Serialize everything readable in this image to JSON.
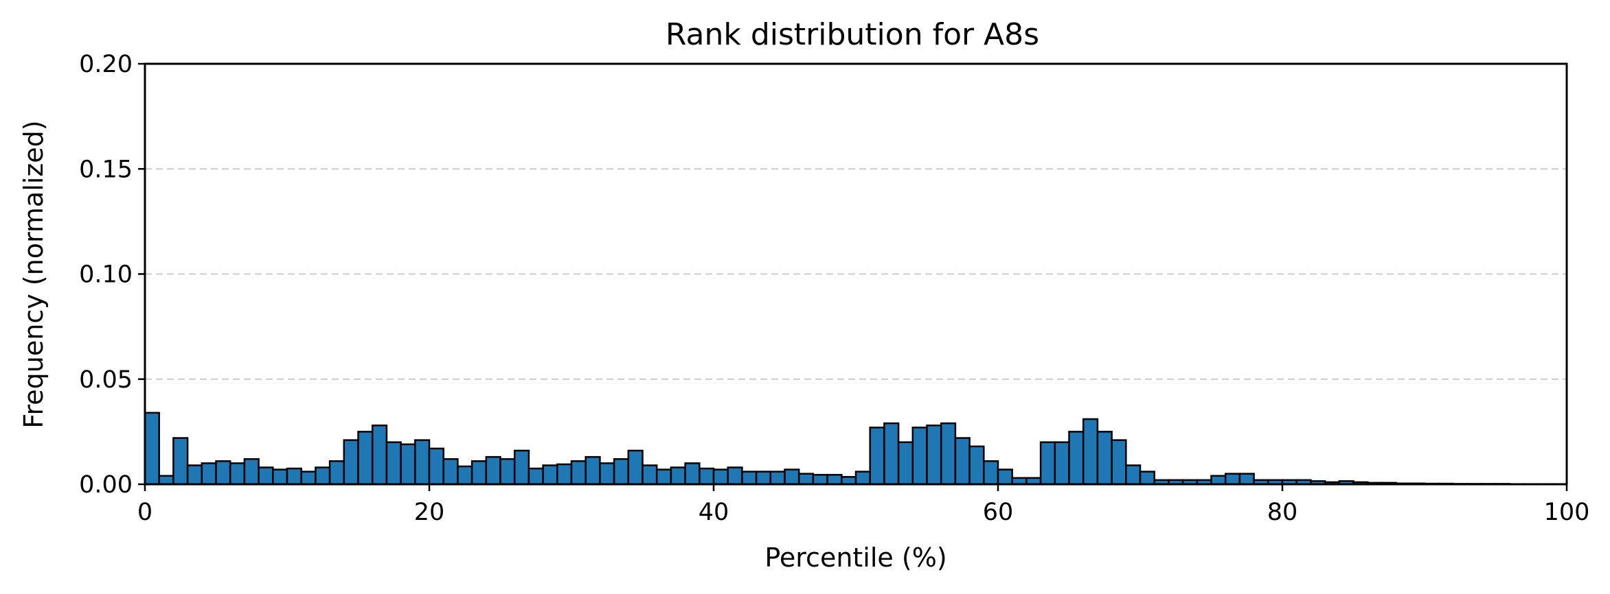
{
  "chart_data": {
    "type": "bar",
    "title": "Rank distribution for A8s",
    "xlabel": "Percentile (%)",
    "ylabel": "Frequency (normalized)",
    "xlim": [
      0,
      100
    ],
    "ylim": [
      0,
      0.2
    ],
    "xticks": [
      0,
      20,
      40,
      60,
      80,
      100
    ],
    "xtick_labels": [
      "0",
      "20",
      "40",
      "60",
      "80",
      "100"
    ],
    "yticks": [
      0,
      0.05,
      0.1,
      0.15,
      0.2
    ],
    "ytick_labels": [
      "0.00",
      "0.05",
      "0.10",
      "0.15",
      "0.20"
    ],
    "grid": {
      "axis": "y",
      "style": "dashed",
      "color": "#cccccc"
    },
    "bar_color": "#1f77b4",
    "edge_color": "#000000",
    "bin_width": 1,
    "bin_starts": [
      0,
      1,
      2,
      3,
      4,
      5,
      6,
      7,
      8,
      9,
      10,
      11,
      12,
      13,
      14,
      15,
      16,
      17,
      18,
      19,
      20,
      21,
      22,
      23,
      24,
      25,
      26,
      27,
      28,
      29,
      30,
      31,
      32,
      33,
      34,
      35,
      36,
      37,
      38,
      39,
      40,
      41,
      42,
      43,
      44,
      45,
      46,
      47,
      48,
      49,
      50,
      51,
      52,
      53,
      54,
      55,
      56,
      57,
      58,
      59,
      60,
      61,
      62,
      63,
      64,
      65,
      66,
      67,
      68,
      69,
      70,
      71,
      72,
      73,
      74,
      75,
      76,
      77,
      78,
      79,
      80,
      81,
      82,
      83,
      84,
      85,
      86,
      87,
      88,
      89,
      90,
      91,
      92,
      93,
      94,
      95,
      96,
      97,
      98,
      99
    ],
    "values": [
      0.034,
      0.004,
      0.022,
      0.009,
      0.01,
      0.011,
      0.01,
      0.012,
      0.008,
      0.007,
      0.0075,
      0.006,
      0.008,
      0.011,
      0.021,
      0.025,
      0.028,
      0.02,
      0.019,
      0.021,
      0.017,
      0.012,
      0.0085,
      0.011,
      0.013,
      0.012,
      0.016,
      0.0075,
      0.009,
      0.0095,
      0.011,
      0.013,
      0.01,
      0.012,
      0.016,
      0.009,
      0.007,
      0.008,
      0.01,
      0.0075,
      0.007,
      0.008,
      0.006,
      0.006,
      0.006,
      0.007,
      0.005,
      0.0045,
      0.0045,
      0.0035,
      0.006,
      0.027,
      0.029,
      0.02,
      0.027,
      0.028,
      0.029,
      0.022,
      0.018,
      0.011,
      0.007,
      0.003,
      0.003,
      0.02,
      0.02,
      0.025,
      0.031,
      0.025,
      0.021,
      0.009,
      0.006,
      0.002,
      0.002,
      0.002,
      0.002,
      0.004,
      0.005,
      0.005,
      0.002,
      0.002,
      0.002,
      0.002,
      0.0015,
      0.001,
      0.0015,
      0.001,
      0.0007,
      0.0007,
      0.0004,
      0.0004,
      0.0003,
      0.0003,
      0.0002,
      0.0002,
      0.0002,
      0.0002,
      0.0001,
      0.0001,
      0.0001,
      0.0001
    ]
  }
}
